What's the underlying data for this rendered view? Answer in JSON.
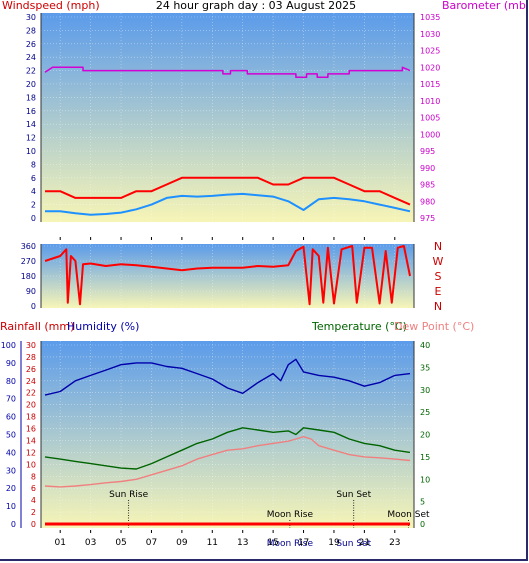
{
  "colors": {
    "bg_top": "#5b9bea",
    "bg_bottom": "#f7f5b6",
    "wind_speed": "#ff0000",
    "wind_avg": "#1e90ff",
    "barometer": "#d400d4",
    "wind_dir": "#ff0000",
    "humidity": "#0000aa",
    "temperature": "#006400",
    "dew_point": "#f08080",
    "rainfall": "#ff0000",
    "axis_blue": "#00008b"
  },
  "chart_data": [
    {
      "type": "line",
      "title": "24 hour graph day : 03 August 2025",
      "y_left_label": "Windspeed (mph)",
      "y_right_label": "Barometer (mb)",
      "y_left_ticks": [
        "0",
        "2",
        "4",
        "6",
        "8",
        "10",
        "12",
        "14",
        "16",
        "18",
        "20",
        "22",
        "24",
        "26",
        "28",
        "30"
      ],
      "y_right_ticks": [
        "975",
        "980",
        "985",
        "990",
        "995",
        "1000",
        "1005",
        "1010",
        "1015",
        "1020",
        "1025",
        "1030",
        "1035"
      ],
      "x_ticks": [
        "01",
        "03",
        "05",
        "07",
        "09",
        "11",
        "13",
        "15",
        "17",
        "19",
        "21",
        "23"
      ],
      "ylim_left": [
        0,
        30
      ],
      "ylim_right": [
        975,
        1035
      ],
      "series": [
        {
          "name": "windspeed",
          "color_key": "wind_speed",
          "points": [
            [
              0,
              4
            ],
            [
              1,
              4
            ],
            [
              2,
              3
            ],
            [
              3,
              3
            ],
            [
              4,
              3
            ],
            [
              5,
              3
            ],
            [
              6,
              4
            ],
            [
              7,
              4
            ],
            [
              8,
              5
            ],
            [
              9,
              6
            ],
            [
              10,
              6
            ],
            [
              11,
              6
            ],
            [
              12,
              6
            ],
            [
              13,
              6
            ],
            [
              14,
              6
            ],
            [
              15,
              5
            ],
            [
              16,
              5
            ],
            [
              17,
              6
            ],
            [
              18,
              6
            ],
            [
              19,
              6
            ],
            [
              20,
              5
            ],
            [
              21,
              4
            ],
            [
              22,
              4
            ],
            [
              23,
              3
            ],
            [
              24,
              2
            ]
          ]
        },
        {
          "name": "windavg",
          "color_key": "wind_avg",
          "points": [
            [
              0,
              1
            ],
            [
              1,
              1
            ],
            [
              2,
              0.7
            ],
            [
              3,
              0.5
            ],
            [
              4,
              0.6
            ],
            [
              5,
              0.8
            ],
            [
              6,
              1.3
            ],
            [
              7,
              2
            ],
            [
              8,
              3
            ],
            [
              9,
              3.3
            ],
            [
              10,
              3.2
            ],
            [
              11,
              3.3
            ],
            [
              12,
              3.5
            ],
            [
              13,
              3.6
            ],
            [
              14,
              3.4
            ],
            [
              15,
              3.2
            ],
            [
              16,
              2.5
            ],
            [
              17,
              1.2
            ],
            [
              18,
              2.8
            ],
            [
              19,
              3
            ],
            [
              20,
              2.8
            ],
            [
              21,
              2.5
            ],
            [
              22,
              2
            ],
            [
              23,
              1.5
            ],
            [
              24,
              1
            ]
          ]
        },
        {
          "name": "barometer",
          "axis": "right",
          "color_key": "barometer",
          "points": [
            [
              0,
              1018.5
            ],
            [
              0.5,
              1020
            ],
            [
              2.5,
              1020
            ],
            [
              2.5,
              1019
            ],
            [
              3.5,
              1019
            ],
            [
              11.7,
              1019
            ],
            [
              11.7,
              1018
            ],
            [
              12.2,
              1018
            ],
            [
              12.2,
              1019
            ],
            [
              13.3,
              1019
            ],
            [
              13.3,
              1018
            ],
            [
              16.5,
              1018
            ],
            [
              16.5,
              1017
            ],
            [
              17.2,
              1017
            ],
            [
              17.2,
              1018
            ],
            [
              17.9,
              1018
            ],
            [
              17.9,
              1017
            ],
            [
              18.6,
              1017
            ],
            [
              18.6,
              1018
            ],
            [
              20,
              1018
            ],
            [
              20,
              1019
            ],
            [
              23.5,
              1019
            ],
            [
              23.5,
              1020
            ],
            [
              24,
              1019
            ]
          ]
        }
      ]
    },
    {
      "type": "line",
      "y_left_ticks": [
        "0",
        "90",
        "180",
        "270",
        "360"
      ],
      "compass_labels": [
        "N",
        "W",
        "S",
        "E",
        "N"
      ],
      "ylim": [
        0,
        360
      ],
      "series": [
        {
          "name": "winddir",
          "color_key": "wind_dir",
          "points": [
            [
              0,
              270
            ],
            [
              1,
              300
            ],
            [
              1.4,
              340
            ],
            [
              1.5,
              20
            ],
            [
              1.7,
              300
            ],
            [
              2,
              270
            ],
            [
              2.3,
              10
            ],
            [
              2.5,
              250
            ],
            [
              3,
              255
            ],
            [
              4,
              240
            ],
            [
              5,
              250
            ],
            [
              6,
              245
            ],
            [
              7,
              235
            ],
            [
              8,
              225
            ],
            [
              9,
              215
            ],
            [
              10,
              225
            ],
            [
              11,
              230
            ],
            [
              12,
              230
            ],
            [
              13,
              230
            ],
            [
              14,
              240
            ],
            [
              15,
              235
            ],
            [
              16,
              245
            ],
            [
              16.5,
              330
            ],
            [
              17,
              355
            ],
            [
              17.4,
              10
            ],
            [
              17.6,
              340
            ],
            [
              18,
              300
            ],
            [
              18.3,
              20
            ],
            [
              18.6,
              350
            ],
            [
              19,
              15
            ],
            [
              19.5,
              340
            ],
            [
              20.2,
              360
            ],
            [
              20.5,
              20
            ],
            [
              21,
              350
            ],
            [
              21.5,
              350
            ],
            [
              22,
              15
            ],
            [
              22.4,
              330
            ],
            [
              22.8,
              20
            ],
            [
              23.2,
              350
            ],
            [
              23.6,
              360
            ],
            [
              24,
              180
            ]
          ]
        }
      ]
    },
    {
      "type": "line",
      "y_left_labels": [
        "Rainfall (mm)",
        "Humidity (%)"
      ],
      "y_right_labels": [
        "Temperature (°C)",
        "Dew Point (°C)"
      ],
      "y_rain_ticks": [
        "0",
        "2",
        "4",
        "6",
        "8",
        "10",
        "12",
        "14",
        "16",
        "18",
        "20",
        "22",
        "24",
        "26",
        "28",
        "30"
      ],
      "y_humidity_ticks": [
        "0",
        "10",
        "20",
        "30",
        "40",
        "50",
        "60",
        "70",
        "80",
        "90",
        "100"
      ],
      "y_temp_ticks": [
        "0",
        "5",
        "10",
        "15",
        "20",
        "25",
        "30",
        "35",
        "40"
      ],
      "x_ticks": [
        "01",
        "03",
        "05",
        "07",
        "09",
        "11",
        "13",
        "15",
        "17",
        "19",
        "21",
        "23"
      ],
      "ylim_temp": [
        0,
        40
      ],
      "ylim_humidity": [
        0,
        100
      ],
      "events": [
        {
          "label": "Sun Rise",
          "hour": 5.5
        },
        {
          "label": "Moon Rise",
          "hour": 16.1
        },
        {
          "label": "Sun Set",
          "hour": 20.3
        },
        {
          "label": "Moon Set",
          "hour": 23.9
        }
      ],
      "series": [
        {
          "name": "humidity",
          "axis": "humidity",
          "color_key": "humidity",
          "points": [
            [
              0,
              72
            ],
            [
              1,
              74
            ],
            [
              2,
              80
            ],
            [
              3,
              83
            ],
            [
              4,
              86
            ],
            [
              5,
              89
            ],
            [
              6,
              90
            ],
            [
              7,
              90
            ],
            [
              8,
              88
            ],
            [
              9,
              87
            ],
            [
              10,
              84
            ],
            [
              11,
              81
            ],
            [
              12,
              76
            ],
            [
              13,
              73
            ],
            [
              14,
              79
            ],
            [
              15,
              84
            ],
            [
              15.5,
              80
            ],
            [
              16,
              89
            ],
            [
              16.5,
              92
            ],
            [
              17,
              85
            ],
            [
              18,
              83
            ],
            [
              19,
              82
            ],
            [
              20,
              80
            ],
            [
              21,
              77
            ],
            [
              22,
              79
            ],
            [
              23,
              83
            ],
            [
              24,
              84
            ]
          ]
        },
        {
          "name": "temperature",
          "axis": "temp",
          "color_key": "temperature",
          "points": [
            [
              0,
              15
            ],
            [
              1,
              14.5
            ],
            [
              2,
              14
            ],
            [
              3,
              13.5
            ],
            [
              4,
              13
            ],
            [
              5,
              12.5
            ],
            [
              6,
              12.3
            ],
            [
              7,
              13.5
            ],
            [
              8,
              15
            ],
            [
              9,
              16.5
            ],
            [
              10,
              18
            ],
            [
              11,
              19
            ],
            [
              12,
              20.5
            ],
            [
              13,
              21.5
            ],
            [
              14,
              21
            ],
            [
              15,
              20.5
            ],
            [
              16,
              20.8
            ],
            [
              16.5,
              20
            ],
            [
              17,
              21.5
            ],
            [
              18,
              21
            ],
            [
              19,
              20.5
            ],
            [
              20,
              19
            ],
            [
              21,
              18
            ],
            [
              22,
              17.5
            ],
            [
              23,
              16.5
            ],
            [
              24,
              16
            ]
          ]
        },
        {
          "name": "dewpoint",
          "axis": "temp",
          "color_key": "dew_point",
          "points": [
            [
              0,
              8.5
            ],
            [
              1,
              8.3
            ],
            [
              2,
              8.5
            ],
            [
              3,
              8.8
            ],
            [
              4,
              9.2
            ],
            [
              5,
              9.5
            ],
            [
              6,
              10
            ],
            [
              7,
              11
            ],
            [
              8,
              12
            ],
            [
              9,
              13
            ],
            [
              10,
              14.5
            ],
            [
              11,
              15.5
            ],
            [
              12,
              16.5
            ],
            [
              13,
              16.8
            ],
            [
              14,
              17.5
            ],
            [
              15,
              18
            ],
            [
              16,
              18.5
            ],
            [
              16.5,
              19
            ],
            [
              17,
              19.5
            ],
            [
              17.5,
              19
            ],
            [
              18,
              17.5
            ],
            [
              19,
              16.5
            ],
            [
              20,
              15.5
            ],
            [
              21,
              15
            ],
            [
              22,
              14.8
            ],
            [
              23,
              14.5
            ],
            [
              24,
              14.2
            ]
          ]
        },
        {
          "name": "rainfall",
          "axis": "rain",
          "color_key": "rainfall",
          "points": [
            [
              0,
              0
            ],
            [
              24,
              0
            ]
          ]
        }
      ]
    }
  ]
}
